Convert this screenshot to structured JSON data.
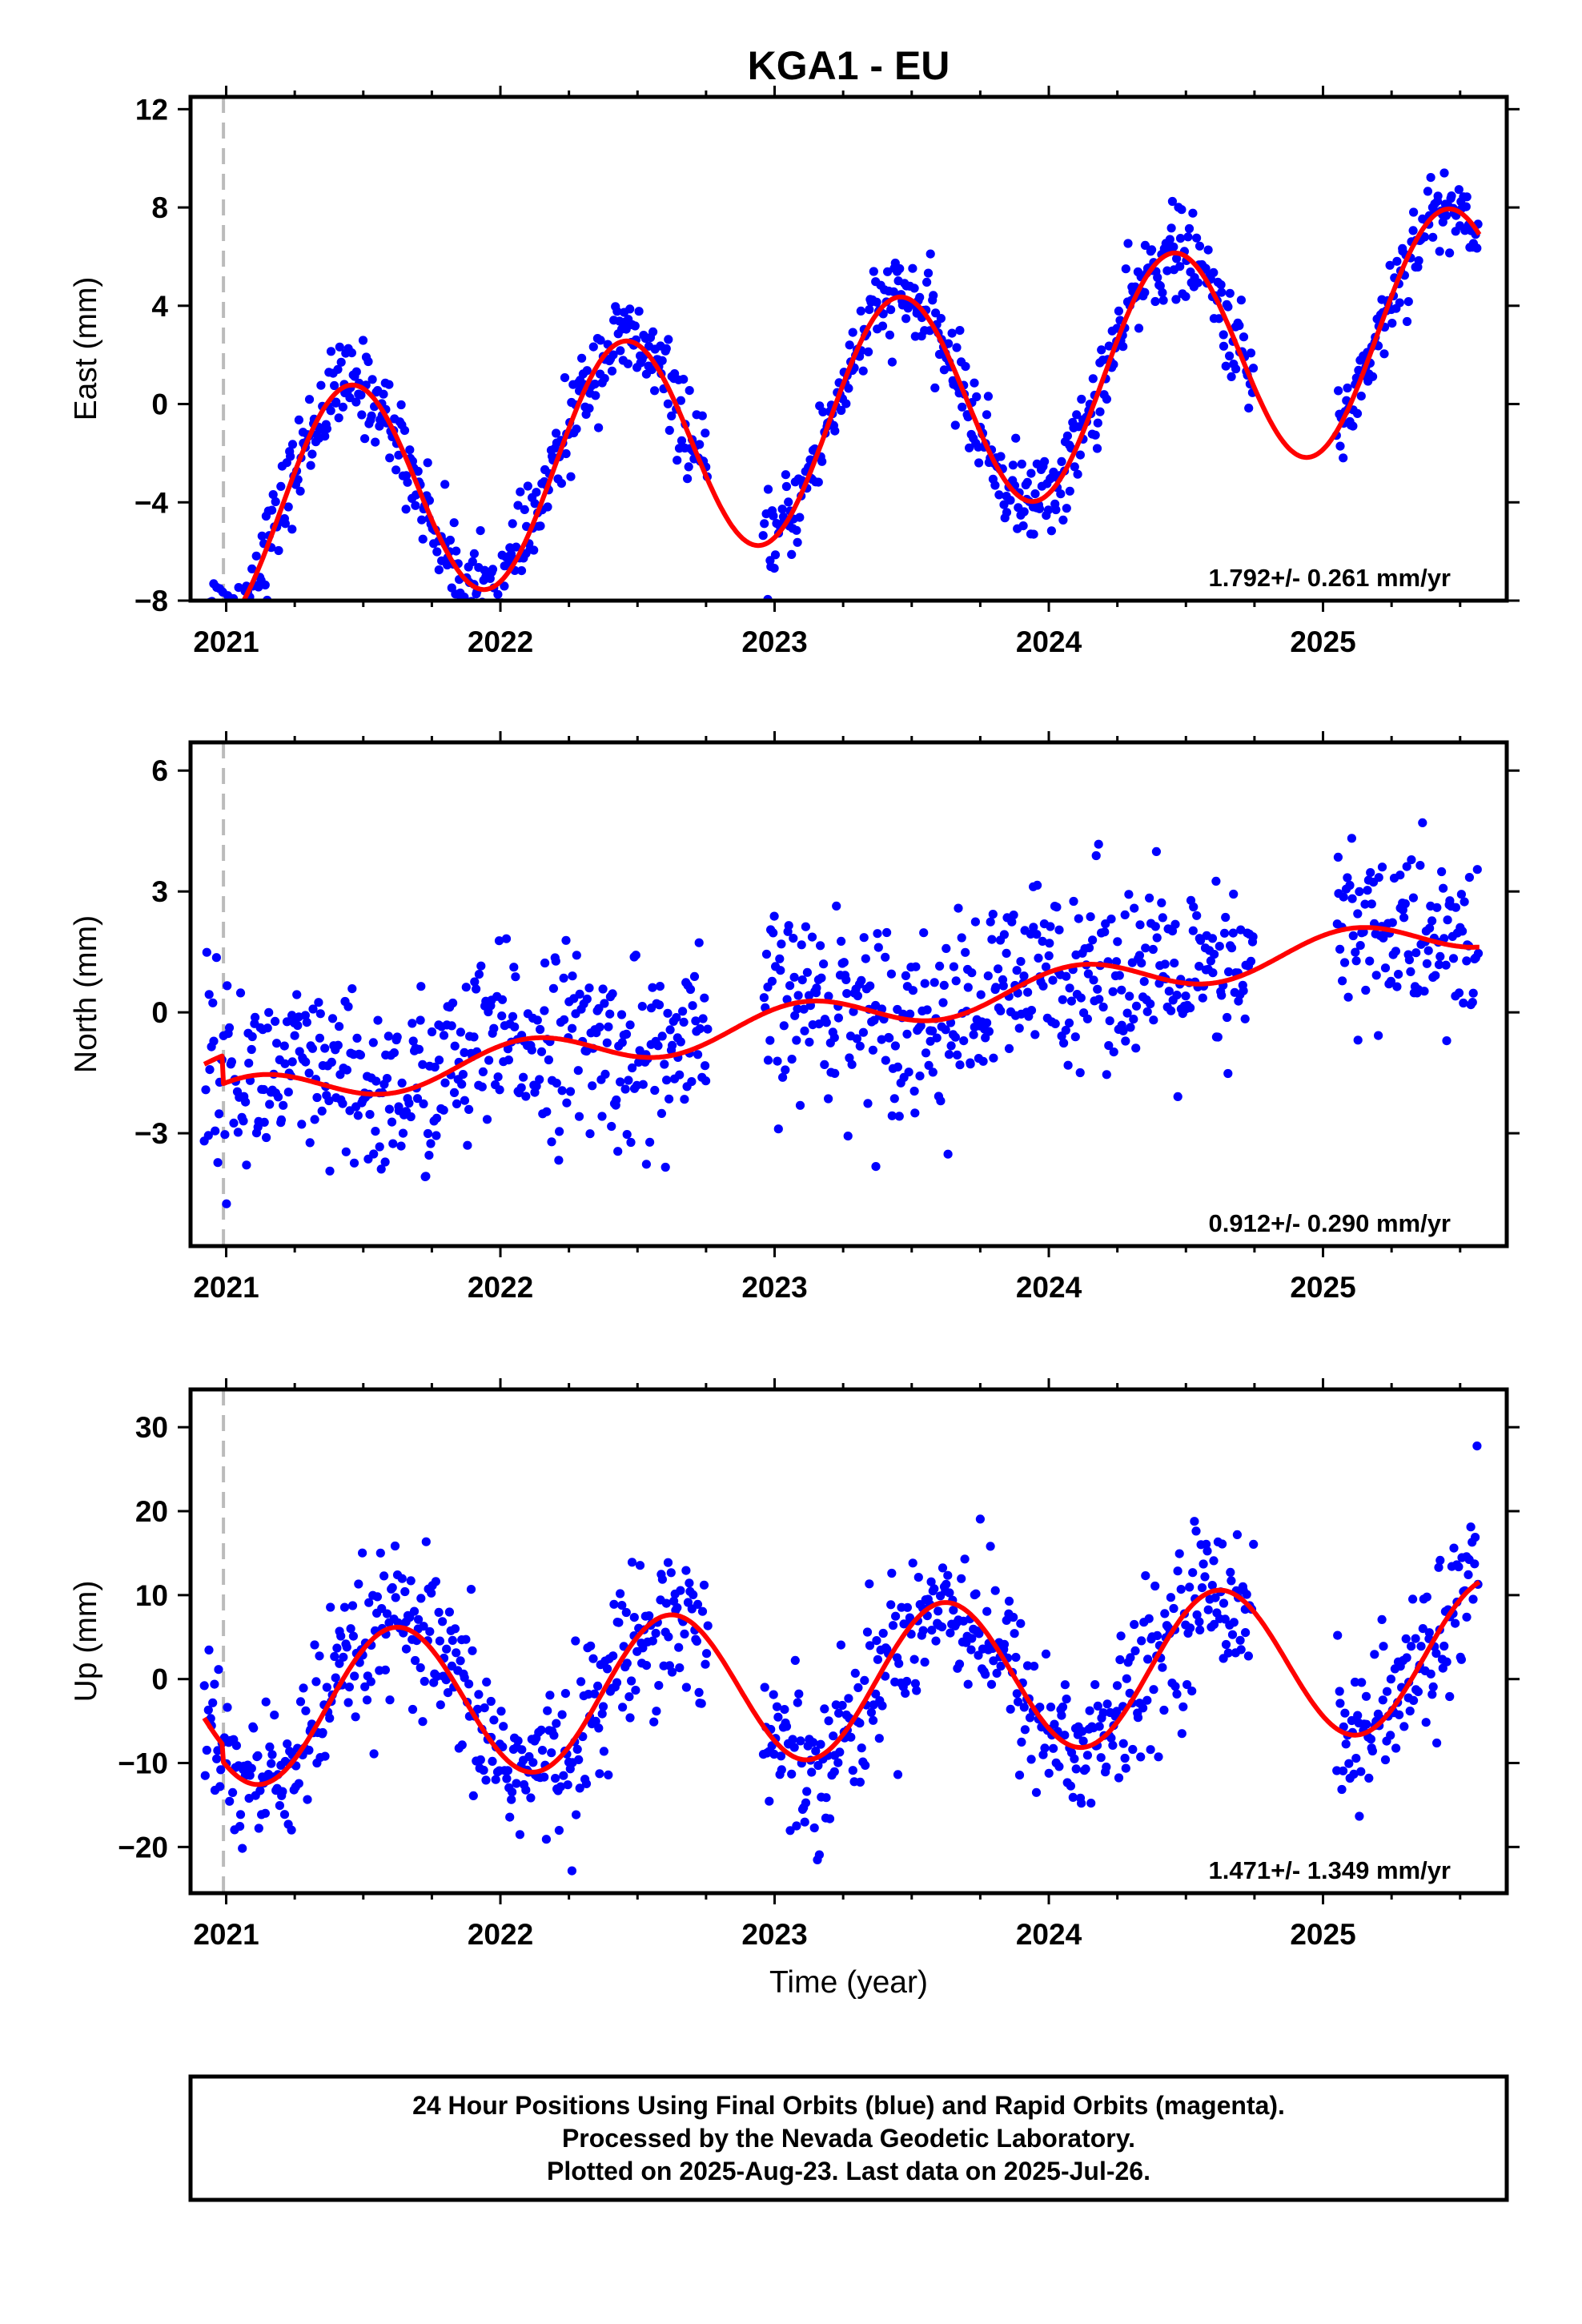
{
  "figure": {
    "title": "KGA1 - EU",
    "xlabel": "Time (year)",
    "footer_lines": [
      "24 Hour Positions Using Final Orbits (blue) and Rapid Orbits (magenta).",
      "Processed by the Nevada Geodetic Laboratory.",
      "Plotted on 2025-Aug-23. Last data on 2025-Jul-26."
    ]
  },
  "colors": {
    "points": "#0000ff",
    "model": "#ff0000",
    "break_line": "#bbbbbb",
    "frame": "#000000"
  },
  "chart_data": [
    {
      "type": "scatter",
      "ylabel": "East (mm)",
      "rate_text": "1.792+/- 0.261 mm/yr",
      "xlim": [
        2020.87,
        2025.67
      ],
      "ylim": [
        -8,
        12.5
      ],
      "yticks": [
        -8,
        -4,
        0,
        4,
        8,
        12
      ],
      "xticks": [
        2021,
        2022,
        2023,
        2024,
        2025
      ],
      "vline": 2020.99,
      "model": {
        "rate": 1.792,
        "t0": 2023.2,
        "offset": -0.7,
        "amp": 4.6,
        "phase_year": 2021.45,
        "step_at": 2020.99,
        "step": -0.9
      },
      "series": [
        {
          "color": "#0000ff",
          "segments": [
            [
              2020.92,
              2022.76
            ],
            [
              2022.96,
              2024.75
            ],
            [
              2025.05,
              2025.57
            ]
          ],
          "noise": 0.9
        },
        {
          "color": "#ff0000",
          "segments": [
            [
              2020.92,
              2025.57
            ]
          ]
        }
      ]
    },
    {
      "type": "scatter",
      "ylabel": "North (mm)",
      "rate_text": "0.912+/- 0.290 mm/yr",
      "xlim": [
        2020.87,
        2025.67
      ],
      "ylim": [
        -5.8,
        6.7
      ],
      "yticks": [
        -3,
        0,
        3,
        6
      ],
      "xticks": [
        2021,
        2022,
        2023,
        2024,
        2025
      ],
      "vline": 2020.99,
      "model": {
        "rate": 0.912,
        "t0": 2023.2,
        "offset": -0.1,
        "amp": 0.45,
        "phase_year": 2021.1,
        "step_at": 2020.99,
        "step": -0.7
      },
      "series": [
        {
          "color": "#0000ff",
          "segments": [
            [
              2020.92,
              2022.76
            ],
            [
              2022.96,
              2024.75
            ],
            [
              2025.05,
              2025.57
            ]
          ],
          "noise": 1.15
        },
        {
          "color": "#ff0000",
          "segments": [
            [
              2020.92,
              2025.57
            ]
          ]
        }
      ]
    },
    {
      "type": "scatter",
      "ylabel": "Up (mm)",
      "rate_text": "1.471+/- 1.349 mm/yr",
      "xlim": [
        2020.87,
        2025.67
      ],
      "ylim": [
        -25.5,
        34.5
      ],
      "yticks": [
        -20,
        -10,
        0,
        10,
        20,
        30
      ],
      "xticks": [
        2021,
        2022,
        2023,
        2024,
        2025
      ],
      "vline": 2020.99,
      "model": {
        "rate": 1.471,
        "t0": 2023.2,
        "offset": -0.5,
        "amp": 9.0,
        "phase_year": 2021.62,
        "step_at": 2020.99,
        "step": -2.0
      },
      "series": [
        {
          "color": "#0000ff",
          "segments": [
            [
              2020.92,
              2022.76
            ],
            [
              2022.96,
              2024.75
            ],
            [
              2025.05,
              2025.57
            ]
          ],
          "noise": 4.6
        },
        {
          "color": "#ff0000",
          "segments": [
            [
              2020.92,
              2025.57
            ]
          ]
        }
      ]
    }
  ]
}
